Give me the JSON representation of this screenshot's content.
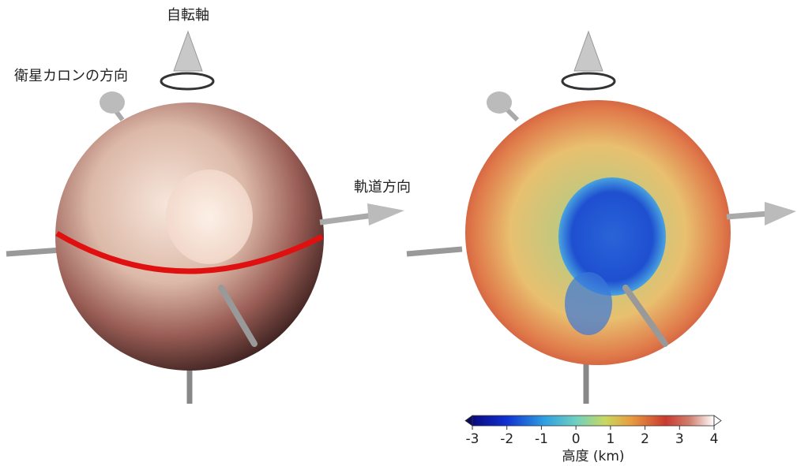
{
  "labels": {
    "rotation_axis": "自転軸",
    "charon_direction": "衛星カロンの方向",
    "orbit_direction": "軌道方向"
  },
  "colorbar": {
    "label": "高度 (km)",
    "lim": [
      -3,
      4
    ],
    "ticks": [
      -3,
      -2,
      -1,
      0,
      1,
      2,
      3,
      4
    ]
  }
}
